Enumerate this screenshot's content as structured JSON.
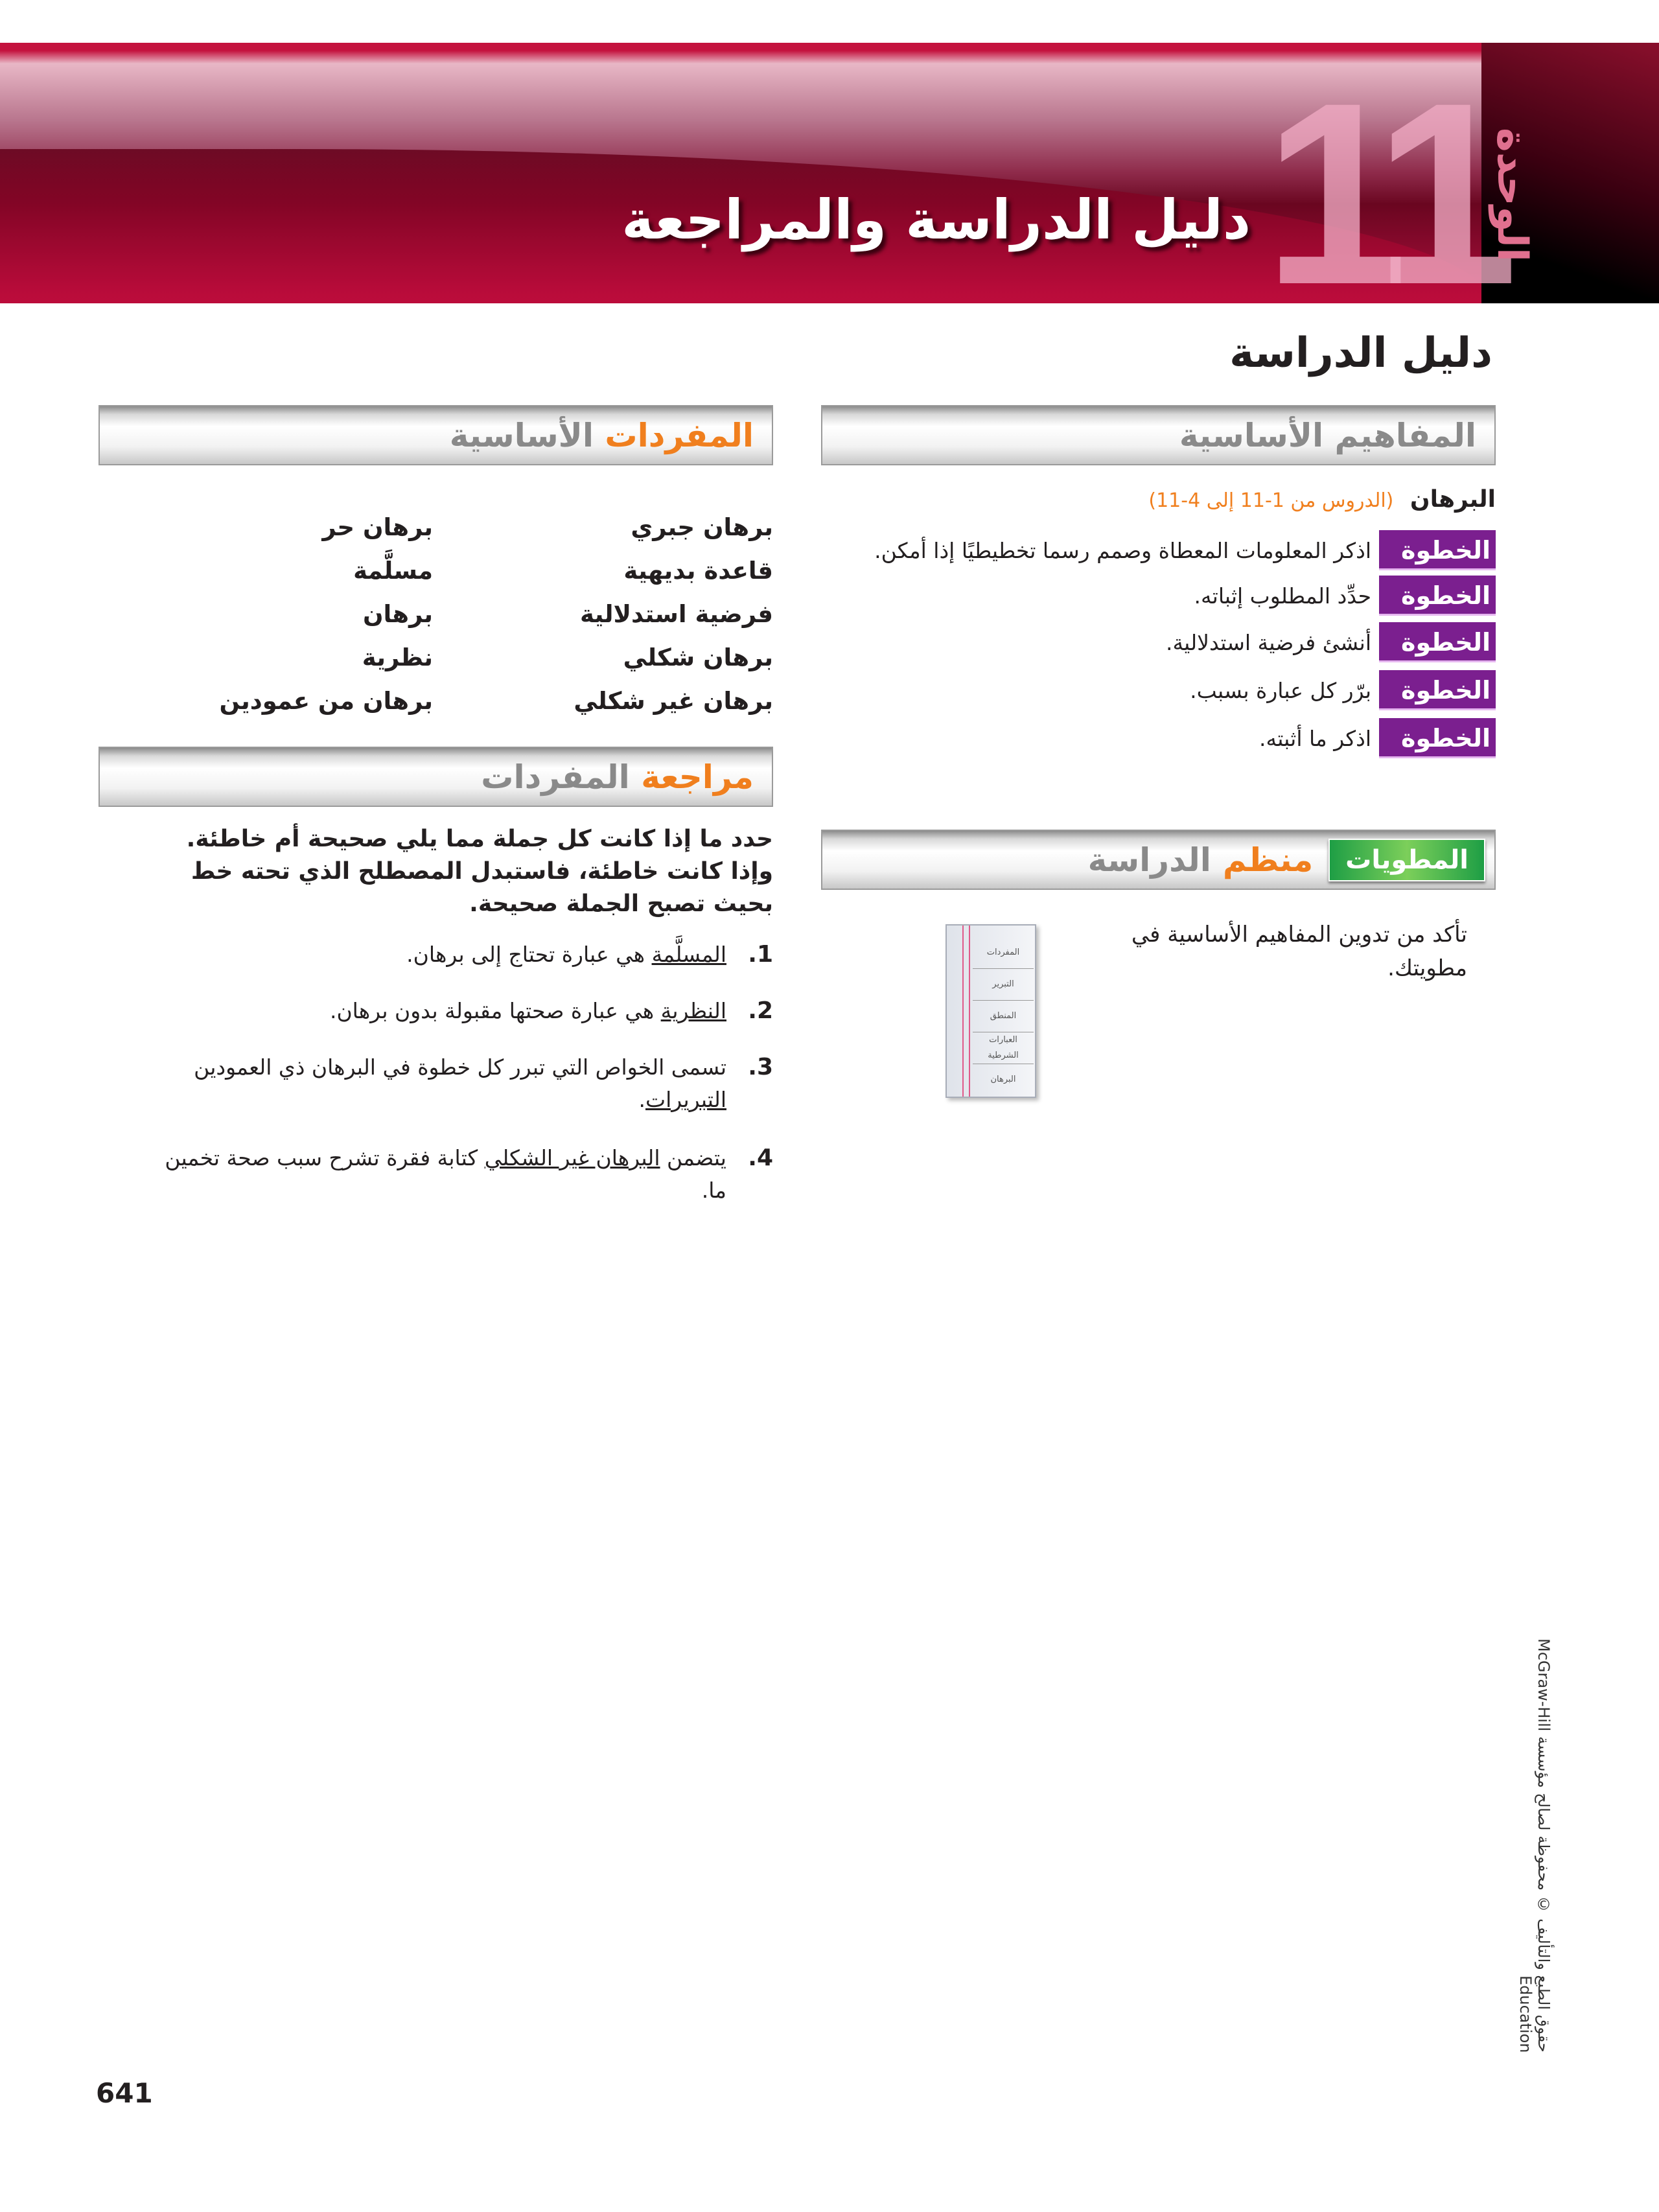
{
  "banner": {
    "unit_word": "الوحدة",
    "unit_number": "11",
    "title": "دليل الدراسة والمراجعة"
  },
  "guide_title": "دليل الدراسة",
  "key_concepts": {
    "heading": "المفاهيم الأساسية",
    "topic": "البرهان",
    "lessons": "(الدروس من 1-11 إلى 4-11)",
    "steps": [
      {
        "label": "الخطوة 1",
        "text": "اذكر المعلومات المعطاة وصمم رسما تخطيطيًا إذا أمكن."
      },
      {
        "label": "الخطوة 2",
        "text": "حدِّد المطلوب إثباته."
      },
      {
        "label": "الخطوة 3",
        "text": "أنشئ فرضية استدلالية."
      },
      {
        "label": "الخطوة 4",
        "text": "برّر كل عبارة بسبب."
      },
      {
        "label": "الخطوة 5",
        "text": "اذكر ما أثبته."
      }
    ]
  },
  "key_vocab": {
    "heading_accent": "المفردات",
    "heading_rest": "الأساسية",
    "col1": [
      "برهان جبري",
      "قاعدة بديهية",
      "فرضية استدلالية",
      "برهان شكلي",
      "برهان غير شكلي"
    ],
    "col2": [
      "برهان حر",
      "مسلَّمة",
      "برهان",
      "نظرية",
      "برهان من عمودين"
    ]
  },
  "vocab_review": {
    "heading_accent": "مراجعة",
    "heading_rest": "المفردات",
    "instructions": "حدد ما إذا كانت كل جملة مما يلي صحيحة أم خاطئة. وإذا كانت خاطئة، فاستبدل المصطلح الذي تحته خط بحيث تصبح الجملة صحيحة.",
    "items": [
      {
        "num": "1.",
        "term": "المسلَّمة",
        "text": " هي عبارة تحتاج إلى برهان."
      },
      {
        "num": "2.",
        "term": "النظرية",
        "text": " هي عبارة صحتها مقبولة بدون برهان."
      },
      {
        "num": "3.",
        "pre": "تسمى الخواص التي تبرر كل خطوة في البرهان ذي العمودين ",
        "term": "التبريرات",
        "text": "."
      },
      {
        "num": "4.",
        "pre": "يتضمن ",
        "term": "البرهان غير الشكلي",
        "text": " كتابة فقرة تشرح سبب صحة تخمين ما."
      }
    ]
  },
  "study_organizer": {
    "badge": "المطويات",
    "heading_accent": "منظم",
    "heading_rest": "الدراسة",
    "text": "تأكد من تدوين المفاهيم الأساسية في مطويتك.",
    "foldable_tabs": [
      "المفردات",
      "التبرير",
      "المنطق",
      "العبارات الشرطية",
      "البرهان"
    ]
  },
  "copyright": "حقوق الطبع والتأليف © محفوظة لصالح مؤسسة McGraw-Hill Education",
  "page_number": "641",
  "colors": {
    "banner": "#c10e3c",
    "step_label": "#7b1f8f",
    "accent_orange": "#f07f1e",
    "badge_green": "#1e9e45"
  }
}
